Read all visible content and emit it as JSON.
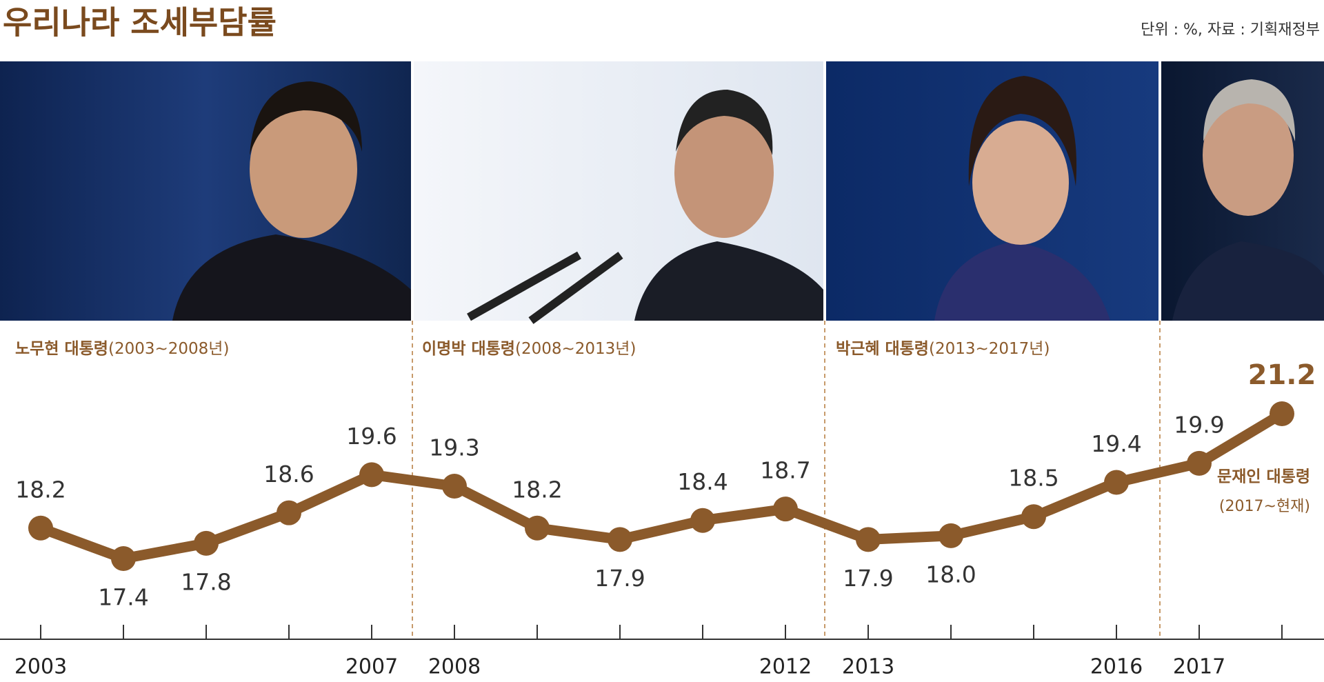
{
  "chart_data": {
    "type": "line",
    "title": "우리나라 조세부담률",
    "source": "단위 : %, 자료 : 기획재정부",
    "presidents": [
      {
        "name": "노무현 대통령",
        "period": "(2003~2008년)"
      },
      {
        "name": "이명박 대통령",
        "period": "(2008~2013년)"
      },
      {
        "name": "박근혜 대통령",
        "period": "(2013~2017년)"
      },
      {
        "name": "문재인 대통령",
        "period": "(2017~현재)"
      }
    ],
    "categories": [
      "2003",
      null,
      null,
      null,
      "2007",
      "2008",
      null,
      null,
      null,
      "2012",
      "2013",
      null,
      null,
      "2016",
      "2017",
      null
    ],
    "values": [
      18.2,
      17.4,
      17.8,
      18.6,
      19.6,
      19.3,
      18.2,
      17.9,
      18.4,
      18.7,
      17.9,
      18.0,
      18.5,
      19.4,
      19.9,
      21.2
    ],
    "value_labels": [
      "18.2",
      "17.4",
      "17.8",
      "18.6",
      "19.6",
      "19.3",
      "18.2",
      "17.9",
      "18.4",
      "18.7",
      "17.9",
      "18.0",
      "18.5",
      "19.4",
      "19.9",
      "21.2"
    ],
    "color": "#8b5a2b"
  }
}
